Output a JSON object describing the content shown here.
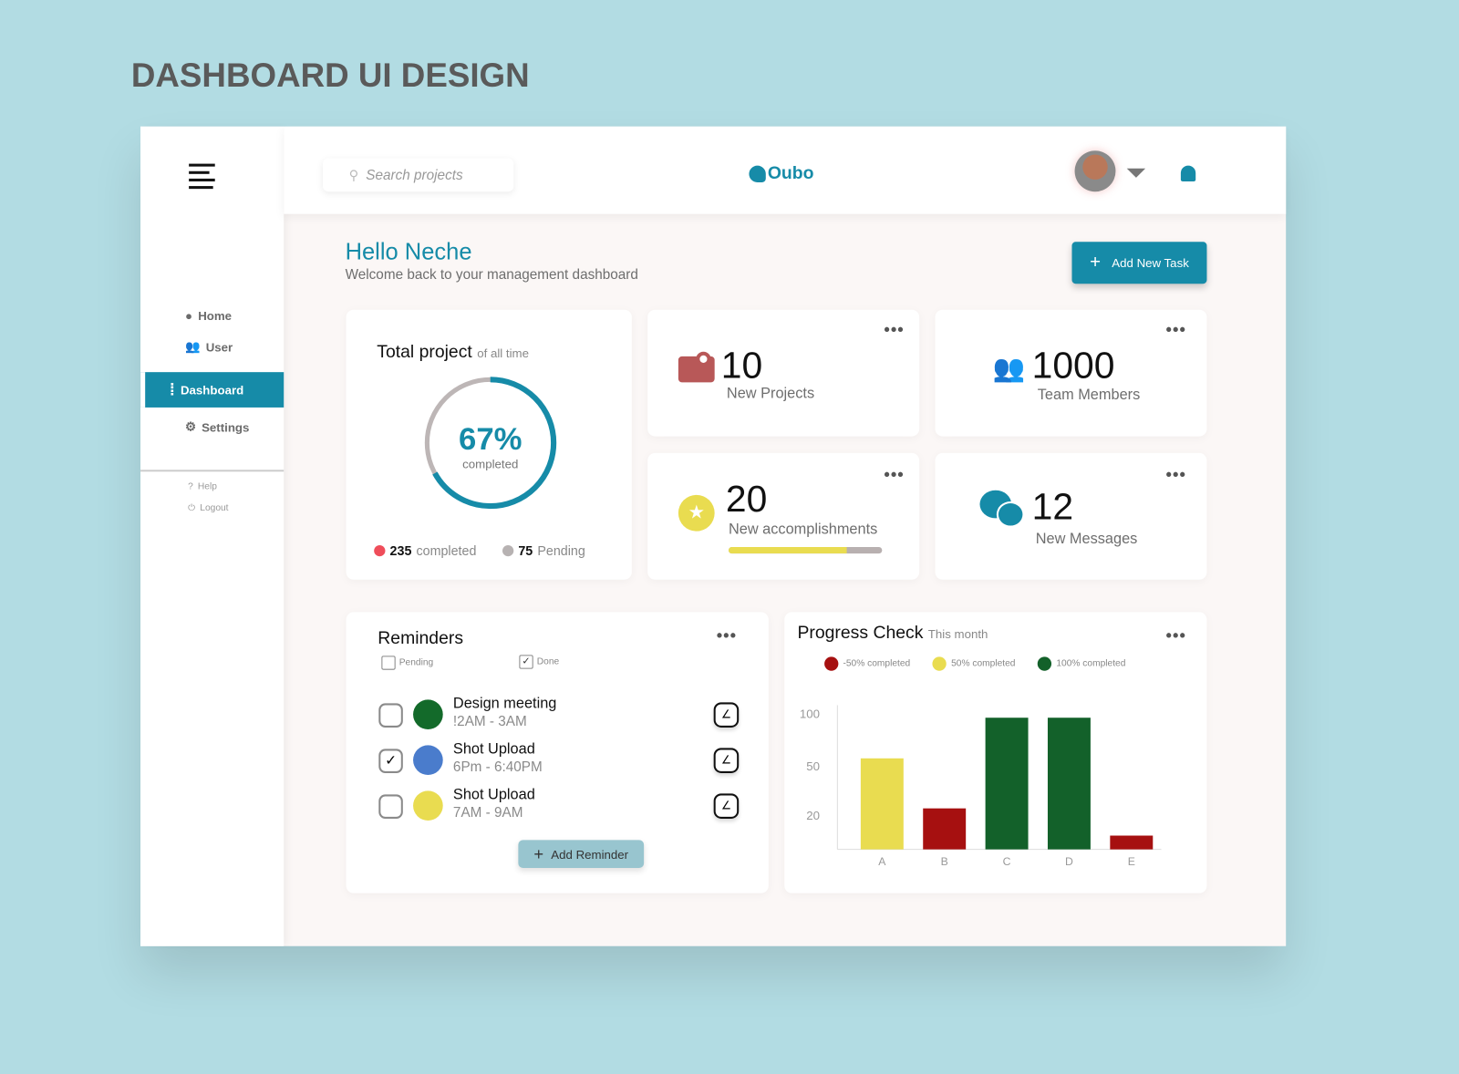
{
  "page_title": "DASHBOARD UI DESIGN",
  "sidebar": {
    "items": [
      {
        "label": "Home",
        "icon": "home-icon"
      },
      {
        "label": "User",
        "icon": "users-icon"
      },
      {
        "label": "Dashboard",
        "icon": "dashboard-icon",
        "active": true
      },
      {
        "label": "Settings",
        "icon": "gear-icon"
      }
    ],
    "footer": [
      {
        "label": "Help",
        "icon": "help-icon"
      },
      {
        "label": "Logout",
        "icon": "logout-icon"
      }
    ]
  },
  "header": {
    "search_placeholder": "Search projects",
    "logo": "Oubo"
  },
  "greeting": {
    "title": "Hello Neche",
    "subtitle": "Welcome back to your management dashboard",
    "add_task": "Add New Task"
  },
  "total_project": {
    "title": "Total project",
    "qualifier": "of all time",
    "percent": "67%",
    "percent_value": 67,
    "percent_label": "completed",
    "completed_count": "235",
    "completed_label": "completed",
    "pending_count": "75",
    "pending_label": "Pending"
  },
  "stats": [
    {
      "value": "10",
      "label": "New Projects",
      "icon": "projector-icon"
    },
    {
      "value": "1000",
      "label": "Team Members",
      "icon": "team-icon"
    },
    {
      "value": "20",
      "label": "New accomplishments",
      "icon": "medal-icon",
      "progress": 0.77
    },
    {
      "value": "12",
      "label": "New Messages",
      "icon": "chat-icon"
    }
  ],
  "reminders": {
    "title": "Reminders",
    "filter_pending": "Pending",
    "filter_done": "Done",
    "add": "Add Reminder",
    "items": [
      {
        "title": "Design meeting",
        "time": "!2AM - 3AM",
        "color": "#136a2a",
        "checked": false
      },
      {
        "title": "Shot Upload",
        "time": "6Pm - 6:40PM",
        "color": "#4a7ccc",
        "checked": true
      },
      {
        "title": "Shot Upload",
        "time": "7AM - 9AM",
        "color": "#e9dc50",
        "checked": false
      }
    ]
  },
  "progress": {
    "title": "Progress Check",
    "qualifier": "This month"
  },
  "chart_data": {
    "type": "bar",
    "categories": [
      "A",
      "B",
      "C",
      "D",
      "E"
    ],
    "values": [
      57,
      24,
      96,
      96,
      8
    ],
    "colors": [
      "#e9dc50",
      "#a61010",
      "#13612a",
      "#13612a",
      "#a61010"
    ],
    "yticks": [
      100,
      50,
      20
    ],
    "legend": [
      {
        "label": "-50% completed",
        "color": "#a61010"
      },
      {
        "label": "50% completed",
        "color": "#e9dc50"
      },
      {
        "label": "100% completed",
        "color": "#13612a"
      }
    ],
    "legend_position": "top",
    "grid": false
  },
  "colors": {
    "accent": "#168ba8",
    "background": "#b2dce3"
  }
}
